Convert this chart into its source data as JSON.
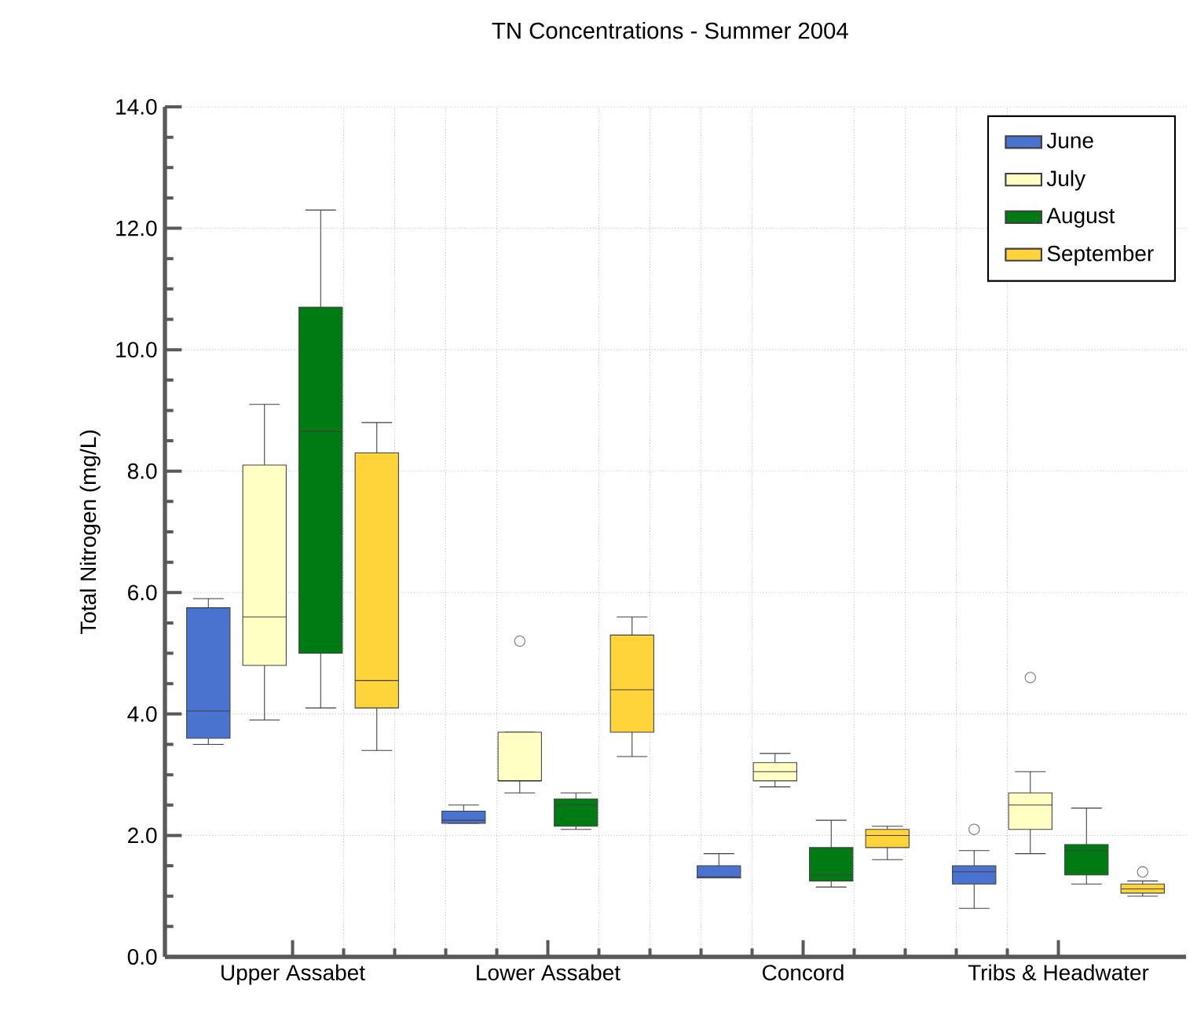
{
  "chart_data": {
    "type": "box",
    "title": "TN Concentrations - Summer 2004",
    "ylabel": "Total Nitrogen (mg/L)",
    "categories": [
      "Upper Assabet",
      "Lower Assabet",
      "Concord",
      "Tribs & Headwater"
    ],
    "ylim": [
      0,
      14
    ],
    "yticks": [
      {
        "value": 0,
        "label": "0.0"
      },
      {
        "value": 2,
        "label": "2.0"
      },
      {
        "value": 4,
        "label": "4.0"
      },
      {
        "value": 6,
        "label": "6.0"
      },
      {
        "value": 8,
        "label": "8.0"
      },
      {
        "value": 10,
        "label": "10.0"
      },
      {
        "value": 12,
        "label": "12.0"
      },
      {
        "value": 14,
        "label": "14.0"
      }
    ],
    "grid": true,
    "legend": "top right",
    "series": [
      {
        "name": "June",
        "color": "#4a72cf",
        "boxes": [
          {
            "low": 3.5,
            "q1": 3.6,
            "median": 4.05,
            "q3": 5.75,
            "high": 5.9
          },
          {
            "low": 2.2,
            "q1": 2.2,
            "median": 2.25,
            "q3": 2.4,
            "high": 2.5
          },
          {
            "low": 1.3,
            "q1": 1.3,
            "median": 1.32,
            "q3": 1.5,
            "high": 1.7
          },
          {
            "low": 0.8,
            "q1": 1.2,
            "median": 1.4,
            "q3": 1.5,
            "high": 1.75,
            "outliers": [
              2.1
            ]
          }
        ]
      },
      {
        "name": "July",
        "color": "#ffffc4",
        "boxes": [
          {
            "low": 3.9,
            "q1": 4.8,
            "median": 5.6,
            "q3": 8.1,
            "high": 9.1
          },
          {
            "low": 2.7,
            "q1": 2.9,
            "median": 2.9,
            "q3": 3.7,
            "high": 3.7,
            "outliers": [
              5.2
            ]
          },
          {
            "low": 2.8,
            "q1": 2.9,
            "median": 3.05,
            "q3": 3.2,
            "high": 3.35
          },
          {
            "low": 1.7,
            "q1": 2.1,
            "median": 2.5,
            "q3": 2.7,
            "high": 3.05,
            "outliers": [
              4.6
            ]
          }
        ]
      },
      {
        "name": "August",
        "color": "#007a12",
        "boxes": [
          {
            "low": 4.1,
            "q1": 5.0,
            "median": 8.65,
            "q3": 10.7,
            "high": 12.3
          },
          {
            "low": 2.1,
            "q1": 2.15,
            "median": 2.5,
            "q3": 2.6,
            "high": 2.7
          },
          {
            "low": 1.15,
            "q1": 1.25,
            "median": 1.35,
            "q3": 1.8,
            "high": 2.25
          },
          {
            "low": 1.2,
            "q1": 1.35,
            "median": 1.75,
            "q3": 1.85,
            "high": 2.45
          }
        ]
      },
      {
        "name": "September",
        "color": "#ffd43b",
        "boxes": [
          {
            "low": 3.4,
            "q1": 4.1,
            "median": 4.55,
            "q3": 8.3,
            "high": 8.8
          },
          {
            "low": 3.3,
            "q1": 3.7,
            "median": 4.4,
            "q3": 5.3,
            "high": 5.6
          },
          {
            "low": 1.6,
            "q1": 1.8,
            "median": 2.0,
            "q3": 2.1,
            "high": 2.15
          },
          {
            "low": 1.0,
            "q1": 1.05,
            "median": 1.12,
            "q3": 1.2,
            "high": 1.25,
            "outliers": [
              1.4
            ]
          }
        ]
      }
    ]
  }
}
